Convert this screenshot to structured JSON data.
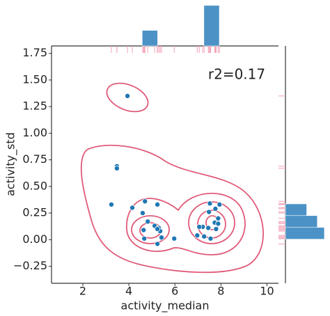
{
  "chart_data": {
    "type": "scatter",
    "xlabel": "activity_median",
    "ylabel": "activity_std",
    "annotation": "r2=0.17",
    "xlim": [
      0.64,
      10.5
    ],
    "ylim": [
      -0.41,
      1.82
    ],
    "xticks": [
      2,
      4,
      6,
      8,
      10
    ],
    "yticks": [
      {
        "value": -0.25,
        "label": "−0.25"
      },
      {
        "value": 0,
        "label": "0.00"
      },
      {
        "value": 0.25,
        "label": "0.25"
      },
      {
        "value": 0.5,
        "label": "0.50"
      },
      {
        "value": 0.75,
        "label": "0.75"
      },
      {
        "value": 1,
        "label": "1.00"
      },
      {
        "value": 1.25,
        "label": "1.25"
      },
      {
        "value": 1.5,
        "label": "1.50"
      },
      {
        "value": 1.75,
        "label": "1.75"
      }
    ],
    "color": "#1f77b4",
    "rug_color": "#f2a0b4",
    "contour_color": "#e05a78",
    "x": [
      3.94,
      3.48,
      3.48,
      3.24,
      4.15,
      4.7,
      5.24,
      4.6,
      4.82,
      5.12,
      5.3,
      5.36,
      5.24,
      4.64,
      4.67,
      5.42,
      5.24,
      5.97,
      7.52,
      7.94,
      7.48,
      7.76,
      7.88,
      7.73,
      7.88,
      7.45,
      7.21,
      6.97,
      7.27,
      7.55,
      7.79,
      7.06
    ],
    "y": [
      1.35,
      0.69,
      0.67,
      0.33,
      0.3,
      0.36,
      0.33,
      0.25,
      0.17,
      0.13,
      0.11,
      0.08,
      0.1,
      0.09,
      0.01,
      0.02,
      -0.04,
      0.01,
      0.34,
      0.33,
      0.26,
      0.29,
      0.2,
      0.16,
      0.15,
      0.11,
      0.12,
      0.04,
      0.03,
      0.01,
      0.1,
      0.12
    ],
    "top_histogram": {
      "bins": [
        3.24,
        3.91,
        4.58,
        5.25,
        5.92,
        6.59,
        7.26,
        7.93
      ],
      "counts": [
        0,
        0,
        5,
        0,
        0,
        0,
        13
      ],
      "countlim": [
        0,
        13.4
      ],
      "color": "#4c92c6"
    },
    "right_histogram": {
      "bins": [
        0.004,
        0.115,
        0.226,
        0.336
      ],
      "counts": [
        11,
        9,
        6
      ],
      "countlim": [
        0,
        11.8
      ],
      "color": "#4c92c6"
    }
  }
}
